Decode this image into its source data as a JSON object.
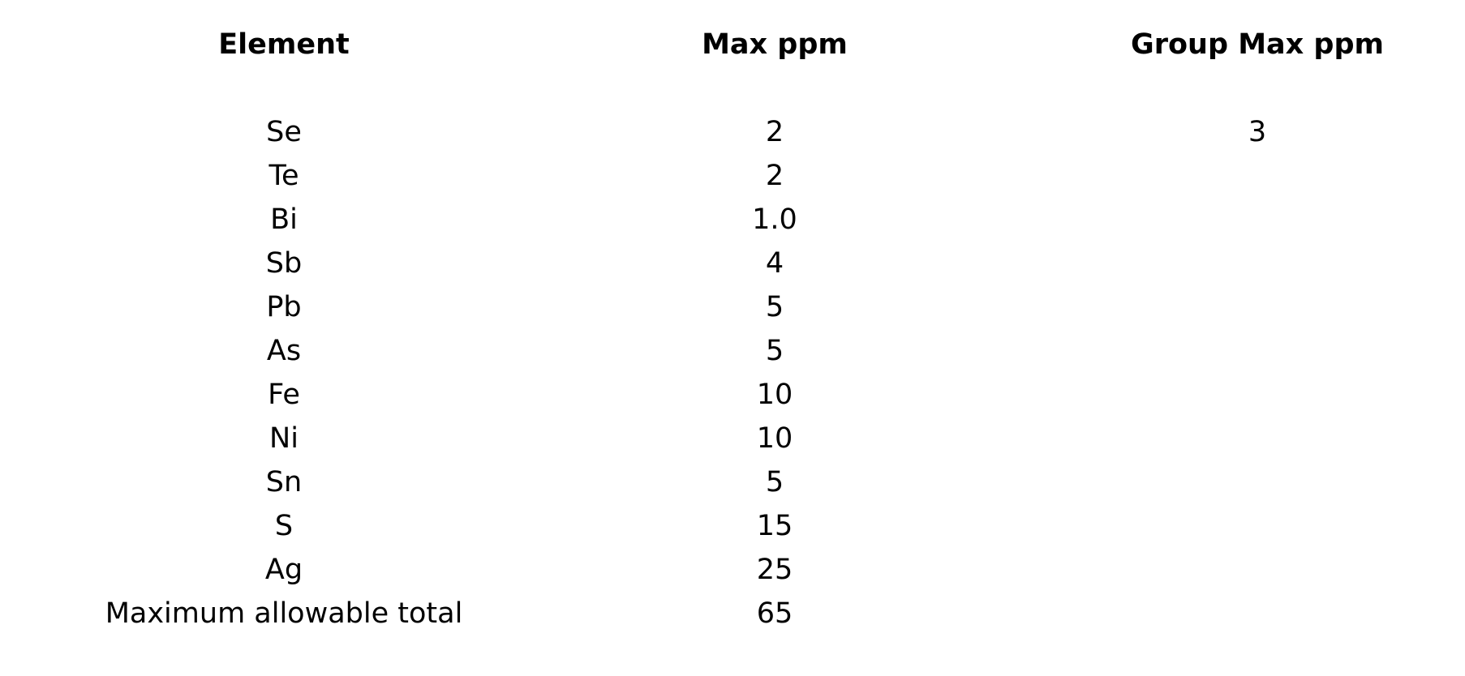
{
  "table": {
    "headers": [
      "Element",
      "Max ppm",
      "Group Max ppm"
    ],
    "rows": [
      {
        "element": "Se",
        "max_ppm": "2",
        "group_max_ppm": "3"
      },
      {
        "element": "Te",
        "max_ppm": "2",
        "group_max_ppm": ""
      },
      {
        "element": "Bi",
        "max_ppm": "1.0",
        "group_max_ppm": ""
      },
      {
        "element": "Sb",
        "max_ppm": "4",
        "group_max_ppm": ""
      },
      {
        "element": "Pb",
        "max_ppm": "5",
        "group_max_ppm": ""
      },
      {
        "element": "As",
        "max_ppm": "5",
        "group_max_ppm": ""
      },
      {
        "element": "Fe",
        "max_ppm": "10",
        "group_max_ppm": ""
      },
      {
        "element": "Ni",
        "max_ppm": "10",
        "group_max_ppm": ""
      },
      {
        "element": "Sn",
        "max_ppm": "5",
        "group_max_ppm": ""
      },
      {
        "element": "S",
        "max_ppm": "15",
        "group_max_ppm": ""
      },
      {
        "element": "Ag",
        "max_ppm": "25",
        "group_max_ppm": ""
      },
      {
        "element": "Maximum allowable total",
        "max_ppm": "65",
        "group_max_ppm": ""
      }
    ]
  }
}
